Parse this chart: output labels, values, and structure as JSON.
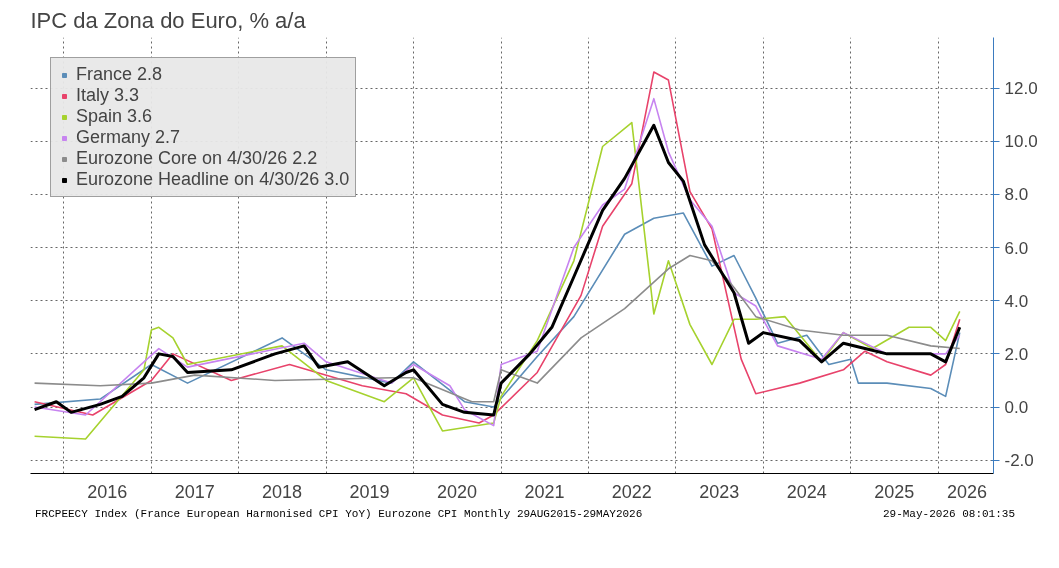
{
  "chart_data": {
    "type": "line",
    "title": "IPC da Zona do Euro, % a/a",
    "annotations": [
      "FRCPEECY Index (France European Harmonised CPI YoY) Eurozone CPI Monthly 29AUG2015-29MAY2026",
      "29-May-2026 08:01:35"
    ],
    "xlim": [
      "2015-08-15",
      "2026-08-20"
    ],
    "xticks": [
      {
        "value": "2016-01-01",
        "label": null
      },
      {
        "value": "2016-07-01",
        "label": "2016"
      },
      {
        "value": "2017-01-01",
        "label": null
      },
      {
        "value": "2017-07-01",
        "label": "2017"
      },
      {
        "value": "2018-01-01",
        "label": null
      },
      {
        "value": "2018-07-01",
        "label": "2018"
      },
      {
        "value": "2019-01-01",
        "label": null
      },
      {
        "value": "2019-07-01",
        "label": "2019"
      },
      {
        "value": "2020-01-01",
        "label": null
      },
      {
        "value": "2020-07-01",
        "label": "2020"
      },
      {
        "value": "2021-01-01",
        "label": null
      },
      {
        "value": "2021-07-01",
        "label": "2021"
      },
      {
        "value": "2022-01-01",
        "label": null
      },
      {
        "value": "2022-07-01",
        "label": "2022"
      },
      {
        "value": "2023-01-01",
        "label": null
      },
      {
        "value": "2023-07-01",
        "label": "2023"
      },
      {
        "value": "2024-01-01",
        "label": null
      },
      {
        "value": "2024-07-01",
        "label": "2024"
      },
      {
        "value": "2025-01-01",
        "label": null
      },
      {
        "value": "2025-07-01",
        "label": "2025"
      },
      {
        "value": "2026-01-01",
        "label": null
      },
      {
        "value": "2026-05-01",
        "label": "2026"
      }
    ],
    "ylim": [
      -2.5,
      13.9
    ],
    "yticks": [
      {
        "value": -2,
        "label": "-2.0"
      },
      {
        "value": 0,
        "label": "0.0"
      },
      {
        "value": 2,
        "label": "2.0"
      },
      {
        "value": 4,
        "label": "4.0"
      },
      {
        "value": 6,
        "label": "6.0"
      },
      {
        "value": 8,
        "label": "8.0"
      },
      {
        "value": 10,
        "label": "10.0"
      },
      {
        "value": 12,
        "label": "12.0"
      }
    ],
    "grid": true,
    "legend": "top left",
    "line_style": "solid",
    "series": [
      {
        "name": "France 2.8",
        "color": "#5b8db8",
        "x": [
          "2015-09",
          "2016-06",
          "2017-01",
          "2017-06",
          "2018-07",
          "2019-01",
          "2019-10",
          "2020-01",
          "2020-08",
          "2020-12",
          "2021-06",
          "2021-11",
          "2022-06",
          "2022-10",
          "2023-02",
          "2023-06",
          "2023-09",
          "2023-12",
          "2024-03",
          "2024-07",
          "2024-10",
          "2025-01",
          "2025-02",
          "2025-06",
          "2025-12",
          "2026-02",
          "2026-04"
        ],
        "values": [
          0.1,
          0.3,
          1.6,
          0.9,
          2.6,
          1.4,
          0.9,
          1.7,
          0.2,
          0.0,
          1.9,
          3.4,
          6.5,
          7.1,
          7.3,
          5.3,
          5.7,
          4.1,
          2.4,
          2.7,
          1.6,
          1.8,
          0.9,
          0.9,
          0.7,
          0.4,
          2.8
        ]
      },
      {
        "name": "Italy 3.3",
        "color": "#e8436b",
        "x": [
          "2015-09",
          "2016-05",
          "2017-01",
          "2017-04",
          "2017-12",
          "2018-08",
          "2019-06",
          "2019-12",
          "2020-05",
          "2020-10",
          "2020-12",
          "2021-06",
          "2021-12",
          "2022-03",
          "2022-07",
          "2022-10",
          "2022-12",
          "2023-03",
          "2023-06",
          "2023-10",
          "2023-12",
          "2024-06",
          "2024-12",
          "2025-03",
          "2025-06",
          "2025-12",
          "2026-02",
          "2026-04"
        ],
        "values": [
          0.2,
          -0.3,
          1.0,
          2.0,
          1.0,
          1.6,
          0.8,
          0.5,
          -0.3,
          -0.6,
          -0.3,
          1.3,
          4.2,
          6.8,
          8.4,
          12.6,
          12.3,
          8.1,
          6.7,
          1.8,
          0.5,
          0.9,
          1.4,
          2.1,
          1.7,
          1.2,
          1.6,
          3.3
        ]
      },
      {
        "name": "Spain 3.6",
        "color": "#a6d22e",
        "x": [
          "2015-09",
          "2016-04",
          "2016-12",
          "2017-01",
          "2017-02",
          "2017-04",
          "2017-06",
          "2018-07",
          "2019-01",
          "2019-09",
          "2020-01",
          "2020-05",
          "2020-12",
          "2021-01",
          "2021-06",
          "2021-11",
          "2022-03",
          "2022-07",
          "2022-10",
          "2022-12",
          "2023-03",
          "2023-06",
          "2023-09",
          "2023-12",
          "2024-04",
          "2024-09",
          "2024-12",
          "2025-04",
          "2025-09",
          "2025-12",
          "2026-02",
          "2026-04"
        ],
        "values": [
          -1.1,
          -1.2,
          1.4,
          2.9,
          3.0,
          2.6,
          1.6,
          2.3,
          1.0,
          0.2,
          1.1,
          -0.9,
          -0.6,
          0.4,
          2.5,
          5.5,
          9.8,
          10.7,
          3.5,
          5.5,
          3.1,
          1.6,
          3.3,
          3.3,
          3.4,
          1.7,
          2.8,
          2.2,
          3.0,
          3.0,
          2.5,
          3.6
        ]
      },
      {
        "name": "Germany 2.7",
        "color": "#c784f0",
        "x": [
          "2015-09",
          "2016-04",
          "2016-12",
          "2017-02",
          "2017-06",
          "2018-10",
          "2019-01",
          "2019-10",
          "2020-01",
          "2020-06",
          "2020-08",
          "2020-12",
          "2021-01",
          "2021-06",
          "2021-11",
          "2022-03",
          "2022-06",
          "2022-10",
          "2022-12",
          "2023-03",
          "2023-06",
          "2023-09",
          "2023-12",
          "2024-03",
          "2024-09",
          "2024-12",
          "2025-06",
          "2025-12",
          "2026-02",
          "2026-04"
        ],
        "values": [
          0.0,
          -0.3,
          1.7,
          2.2,
          1.5,
          2.4,
          1.7,
          0.9,
          1.6,
          0.8,
          -0.1,
          -0.7,
          1.6,
          2.1,
          6.0,
          7.6,
          8.2,
          11.6,
          9.6,
          7.8,
          6.8,
          4.3,
          3.8,
          2.3,
          1.8,
          2.8,
          2.0,
          2.0,
          2.0,
          2.7
        ]
      },
      {
        "name": "Eurozone Core on 4/30/26 2.2",
        "color": "#8c8c8c",
        "x": [
          "2015-09",
          "2016-06",
          "2017-01",
          "2017-07",
          "2018-06",
          "2019-10",
          "2020-01",
          "2020-09",
          "2020-12",
          "2021-01",
          "2021-06",
          "2021-12",
          "2022-06",
          "2022-12",
          "2023-03",
          "2023-06",
          "2023-09",
          "2023-12",
          "2024-06",
          "2024-12",
          "2025-06",
          "2025-12",
          "2026-04"
        ],
        "values": [
          0.9,
          0.8,
          0.9,
          1.2,
          1.0,
          1.1,
          1.1,
          0.2,
          0.2,
          1.4,
          0.9,
          2.6,
          3.7,
          5.2,
          5.7,
          5.5,
          4.5,
          3.4,
          2.9,
          2.7,
          2.7,
          2.3,
          2.2
        ]
      },
      {
        "name": "Eurozone Headline on 4/30/26 3.0",
        "color": "#000000",
        "x": [
          "2015-09",
          "2015-12",
          "2016-02",
          "2016-06",
          "2016-09",
          "2016-12",
          "2017-02",
          "2017-04",
          "2017-06",
          "2017-12",
          "2018-06",
          "2018-10",
          "2018-12",
          "2019-04",
          "2019-09",
          "2019-12",
          "2020-01",
          "2020-05",
          "2020-08",
          "2020-12",
          "2021-01",
          "2021-05",
          "2021-08",
          "2021-11",
          "2022-03",
          "2022-06",
          "2022-10",
          "2022-12",
          "2023-02",
          "2023-05",
          "2023-09",
          "2023-11",
          "2024-01",
          "2024-06",
          "2024-09",
          "2024-12",
          "2025-03",
          "2025-06",
          "2025-12",
          "2026-02",
          "2026-04"
        ],
        "values": [
          -0.1,
          0.2,
          -0.2,
          0.1,
          0.4,
          1.1,
          2.0,
          1.9,
          1.3,
          1.4,
          2.0,
          2.3,
          1.5,
          1.7,
          0.8,
          1.3,
          1.4,
          0.1,
          -0.2,
          -0.3,
          0.9,
          2.0,
          3.0,
          4.9,
          7.4,
          8.6,
          10.6,
          9.2,
          8.5,
          6.1,
          4.3,
          2.4,
          2.8,
          2.5,
          1.7,
          2.4,
          2.2,
          2.0,
          2.0,
          1.7,
          3.0
        ]
      }
    ]
  }
}
